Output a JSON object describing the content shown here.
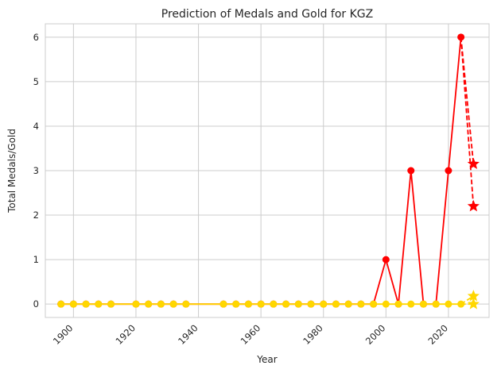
{
  "chart_data": {
    "type": "line",
    "title": "Prediction of Medals and Gold for KGZ",
    "xlabel": "Year",
    "ylabel": "Total Medals/Gold",
    "xlim": [
      1891,
      2033
    ],
    "ylim": [
      -0.3,
      6.3
    ],
    "x_ticks": [
      1900,
      1920,
      1940,
      1960,
      1980,
      2000,
      2020
    ],
    "x_tick_labels": [
      "1900",
      "1920",
      "1940",
      "1960",
      "1980",
      "2000",
      "2020"
    ],
    "y_ticks": [
      0,
      1,
      2,
      3,
      4,
      5,
      6
    ],
    "y_tick_labels": [
      "0",
      "1",
      "2",
      "3",
      "4",
      "5",
      "6"
    ],
    "grid": true,
    "colors": {
      "medals": "#ff0000",
      "gold": "#ffd700",
      "grid": "#cccccc",
      "axes_edge": "#cccccc"
    },
    "series": [
      {
        "key": "medals",
        "style": "solid",
        "marker": "circle",
        "x": [
          1896,
          1900,
          1904,
          1908,
          1912,
          1920,
          1924,
          1928,
          1932,
          1936,
          1948,
          1952,
          1956,
          1960,
          1964,
          1968,
          1972,
          1976,
          1980,
          1984,
          1988,
          1992,
          1996,
          2000,
          2004,
          2008,
          2012,
          2016,
          2020,
          2024
        ],
        "values": [
          0,
          0,
          0,
          0,
          0,
          0,
          0,
          0,
          0,
          0,
          0,
          0,
          0,
          0,
          0,
          0,
          0,
          0,
          0,
          0,
          0,
          0,
          0,
          1,
          0,
          3,
          0,
          0,
          3,
          6
        ]
      },
      {
        "key": "medals-prediction",
        "style": "dashed",
        "marker": "star",
        "x": [
          2024,
          2028
        ],
        "values": [
          6,
          3.15
        ]
      },
      {
        "key": "medals-prediction-2",
        "style": "dashed",
        "marker": "star",
        "x": [
          2024,
          2028
        ],
        "values": [
          6,
          2.2
        ]
      },
      {
        "key": "gold",
        "style": "solid",
        "marker": "circle",
        "x": [
          1896,
          1900,
          1904,
          1908,
          1912,
          1920,
          1924,
          1928,
          1932,
          1936,
          1948,
          1952,
          1956,
          1960,
          1964,
          1968,
          1972,
          1976,
          1980,
          1984,
          1988,
          1992,
          1996,
          2000,
          2004,
          2008,
          2012,
          2016,
          2020,
          2024
        ],
        "values": [
          0,
          0,
          0,
          0,
          0,
          0,
          0,
          0,
          0,
          0,
          0,
          0,
          0,
          0,
          0,
          0,
          0,
          0,
          0,
          0,
          0,
          0,
          0,
          0,
          0,
          0,
          0,
          0,
          0,
          0
        ]
      },
      {
        "key": "gold-prediction",
        "style": "dashed",
        "marker": "star",
        "x": [
          2024,
          2028
        ],
        "values": [
          0,
          0.18
        ]
      },
      {
        "key": "gold-prediction-2",
        "style": "dashed",
        "marker": "star",
        "x": [
          2024,
          2028
        ],
        "values": [
          0,
          0
        ]
      }
    ]
  }
}
